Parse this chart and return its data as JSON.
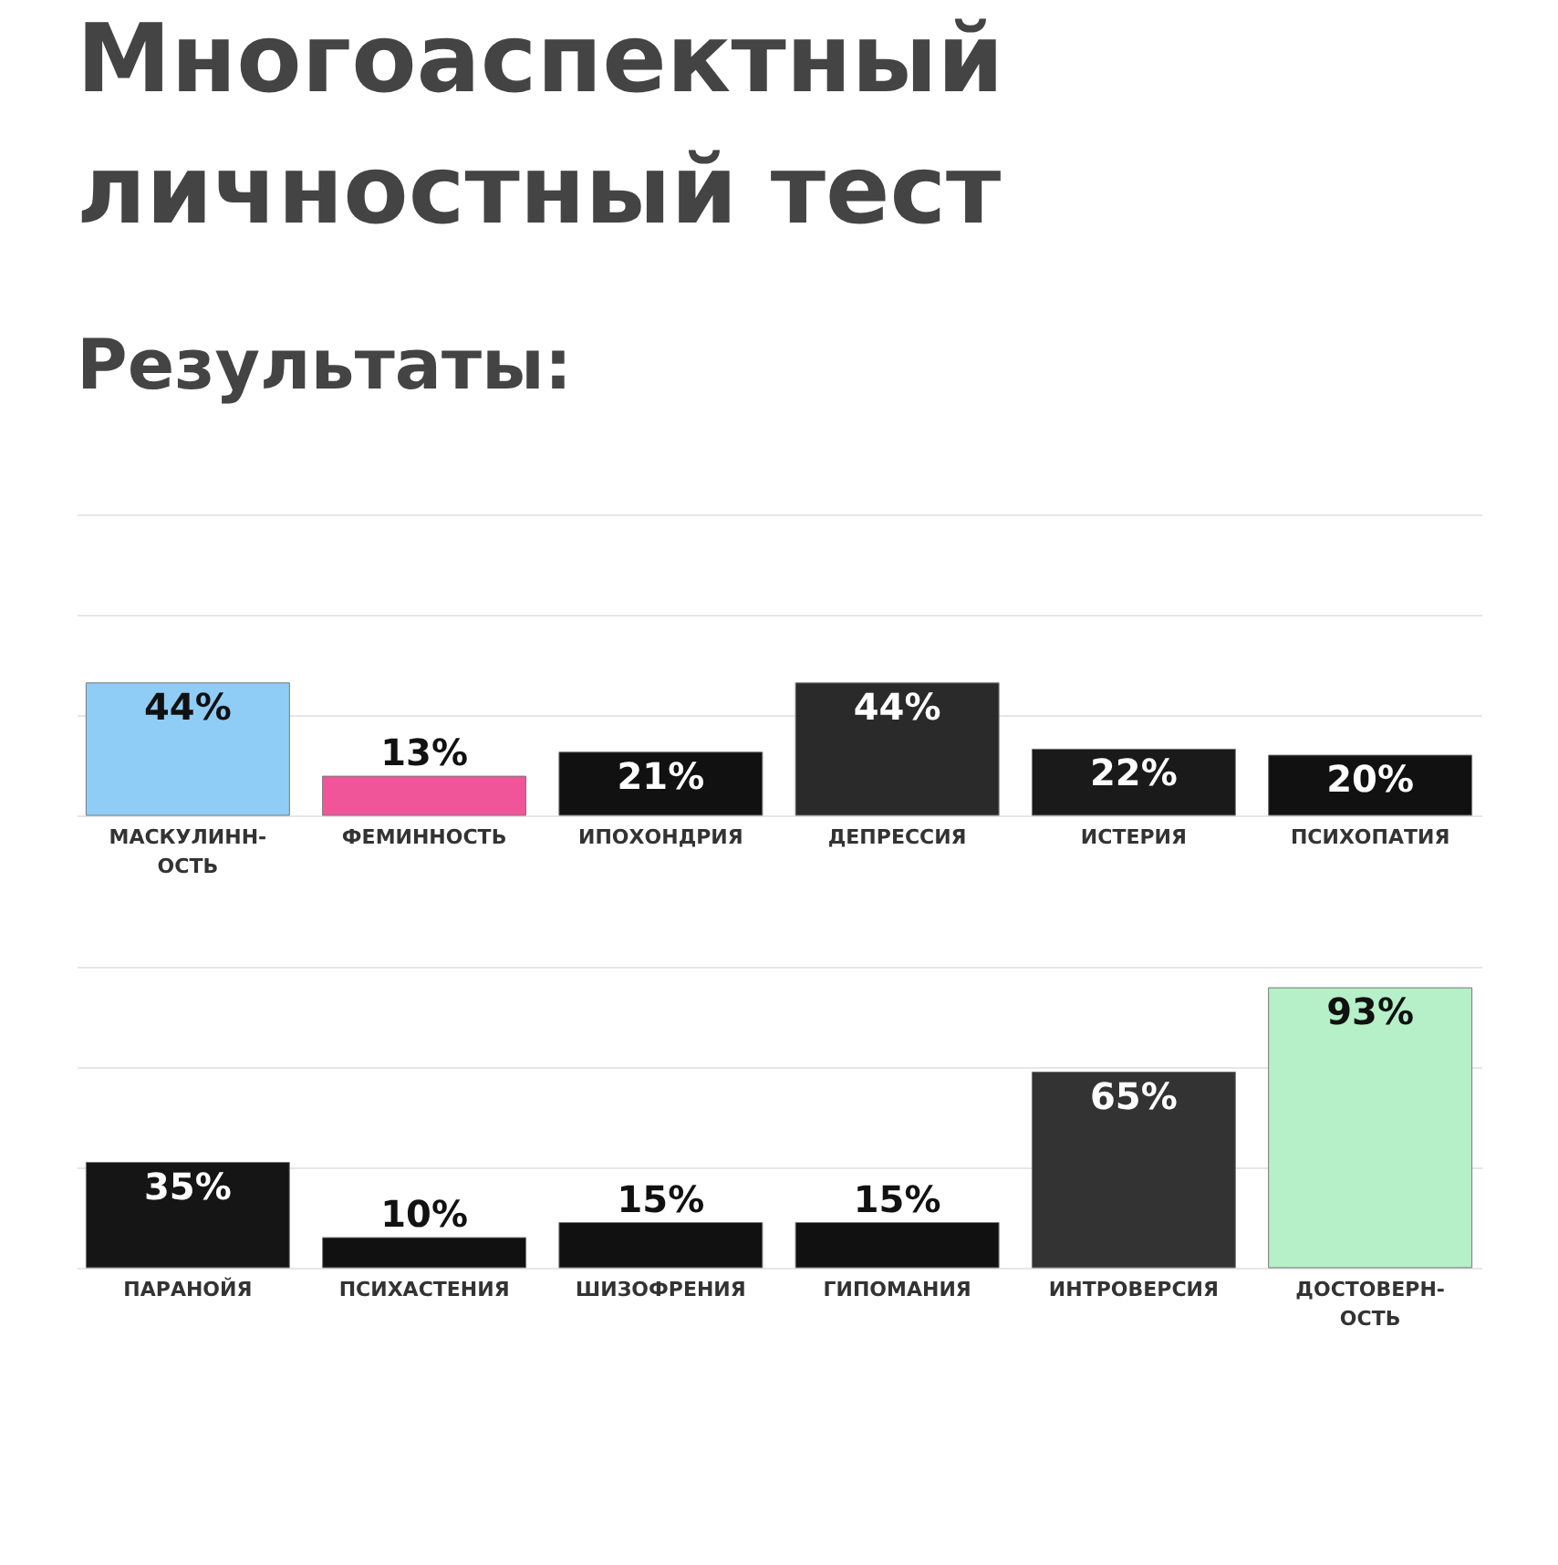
{
  "chart_data": [
    {
      "type": "bar",
      "title": "Многоаспектный\nличностный тест",
      "subtitle": "Результаты:",
      "categories": [
        "МАСКУЛИНН-\nОСТЬ",
        "ФЕМИННОСТЬ",
        "ИПОХОНДРИЯ",
        "ДЕПРЕССИЯ",
        "ИСТЕРИЯ",
        "ПСИХОПАТИЯ"
      ],
      "values": [
        44,
        13,
        21,
        44,
        22,
        20
      ],
      "value_labels": [
        "44%",
        "13%",
        "21%",
        "44%",
        "22%",
        "20%"
      ],
      "colors": [
        "#8fcdf7",
        "#f0559a",
        "#111111",
        "#2a2a2a",
        "#1a1a1a",
        "#111111"
      ],
      "ylim": [
        0,
        100
      ],
      "yticks": [
        {
          "value": 0,
          "label": null
        },
        {
          "value": 33.3,
          "label": null
        },
        {
          "value": 66.7,
          "label": null
        },
        {
          "value": 100,
          "label": null
        }
      ],
      "grid": "y",
      "tick_labels": "x"
    },
    {
      "type": "bar",
      "categories": [
        "ПАРАНОЙЯ",
        "ПСИХАСТЕНИЯ",
        "ШИЗОФРЕНИЯ",
        "ГИПОМАНИЯ",
        "ИНТРОВЕРСИЯ",
        "ДОСТОВЕРН-\nОСТЬ"
      ],
      "values": [
        35,
        10,
        15,
        15,
        65,
        93
      ],
      "value_labels": [
        "35%",
        "10%",
        "15%",
        "15%",
        "65%",
        "93%"
      ],
      "colors": [
        "#151515",
        "#111111",
        "#111111",
        "#111111",
        "#333333",
        "#b5f0c8"
      ],
      "ylim": [
        0,
        100
      ],
      "yticks": [
        {
          "value": 0,
          "label": null
        },
        {
          "value": 33.3,
          "label": null
        },
        {
          "value": 66.7,
          "label": null
        },
        {
          "value": 100,
          "label": null
        }
      ],
      "grid": "y",
      "tick_labels": "x"
    }
  ]
}
